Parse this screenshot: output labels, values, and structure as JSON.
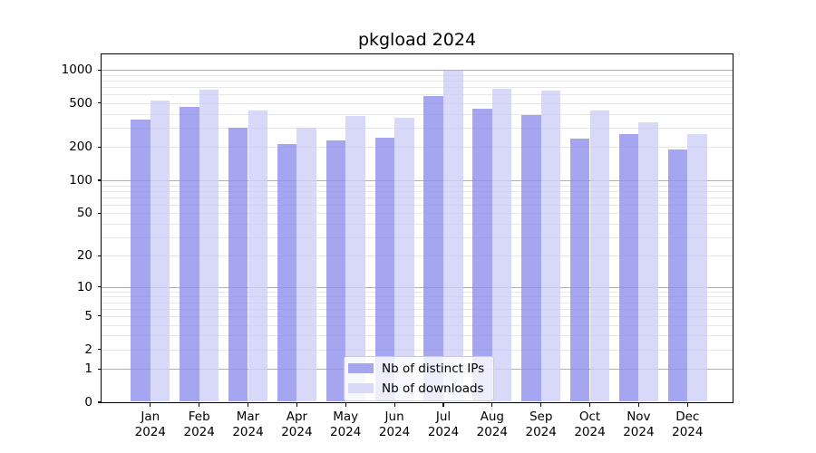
{
  "title": "pkgload 2024",
  "legend": {
    "items": [
      {
        "label": "Nb of distinct IPs"
      },
      {
        "label": "Nb of downloads"
      }
    ]
  },
  "y_axis": {
    "tick_labels": [
      "1000",
      "500",
      "200",
      "100",
      "50",
      "20",
      "10",
      "5",
      "2",
      "1",
      "0"
    ]
  },
  "x_axis": {
    "months": [
      "Jan",
      "Feb",
      "Mar",
      "Apr",
      "May",
      "Jun",
      "Jul",
      "Aug",
      "Sep",
      "Oct",
      "Nov",
      "Dec"
    ],
    "year_line": "2024"
  },
  "colors": {
    "bar_ips": "#a6a6f0",
    "bar_ips_fill": "rgba(144,144,236,0.8)",
    "bar_downloads": "#d8d8f8",
    "bar_downloads_fill": "rgba(206,206,246,0.8)",
    "grid_major": "#b0b0b0",
    "grid_minor": "#e7e7e7",
    "axis": "#000000"
  },
  "chart_data": {
    "type": "bar",
    "title": "pkgload 2024",
    "categories": [
      "Jan 2024",
      "Feb 2024",
      "Mar 2024",
      "Apr 2024",
      "May 2024",
      "Jun 2024",
      "Jul 2024",
      "Aug 2024",
      "Sep 2024",
      "Oct 2024",
      "Nov 2024",
      "Dec 2024"
    ],
    "series": [
      {
        "name": "Nb of distinct IPs",
        "color": "#a6a6f0",
        "fill": "rgba(144,144,236,0.8)",
        "values": [
          355,
          465,
          300,
          215,
          230,
          245,
          580,
          445,
          390,
          240,
          265,
          190
        ]
      },
      {
        "name": "Nb of downloads",
        "color": "#d8d8f8",
        "fill": "rgba(206,206,246,0.8)",
        "values": [
          530,
          665,
          430,
          300,
          380,
          370,
          980,
          680,
          655,
          430,
          335,
          265
        ]
      }
    ],
    "yscale": "log1p",
    "ylim": [
      0,
      1380
    ],
    "y_ticks": [
      1000,
      500,
      200,
      100,
      50,
      20,
      10,
      5,
      2,
      1,
      0
    ],
    "grid": "on",
    "legend_position": "lower center"
  }
}
